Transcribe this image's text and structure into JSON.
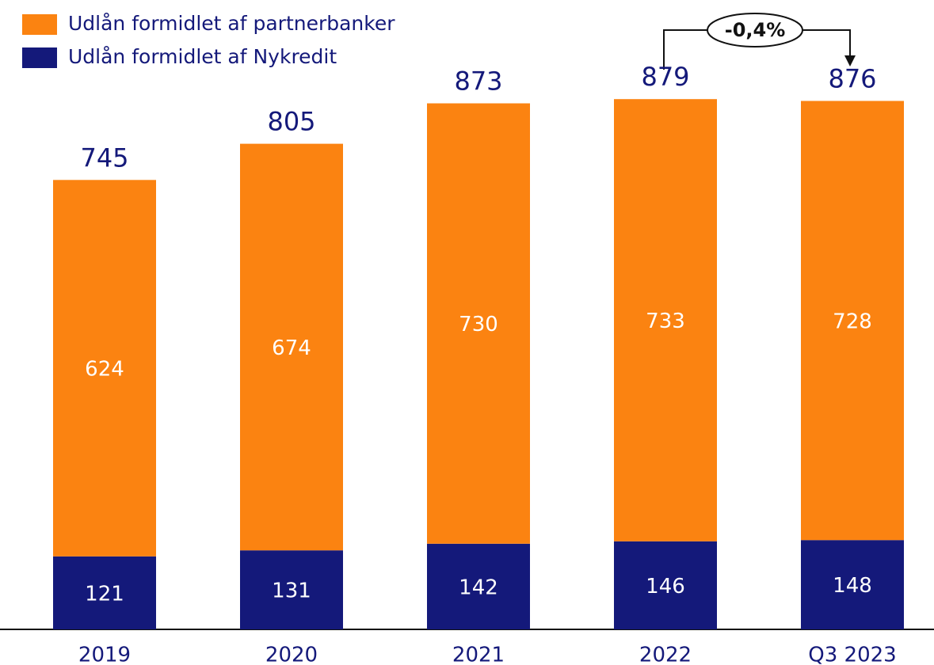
{
  "chart_data": {
    "type": "stacked_bar",
    "categories": [
      "2019",
      "2020",
      "2021",
      "2022",
      "Q3 2023"
    ],
    "series": [
      {
        "name": "Udlån formidlet af Nykredit",
        "color": "#14197a",
        "values": [
          121,
          131,
          142,
          146,
          148
        ]
      },
      {
        "name": "Udlån formidlet af partnerbanker",
        "color": "#fb8311",
        "values": [
          624,
          674,
          730,
          733,
          728
        ]
      }
    ],
    "totals": [
      745,
      805,
      873,
      879,
      876
    ],
    "annotation": "-0,4%",
    "ylim": [
      0,
      1000
    ]
  }
}
